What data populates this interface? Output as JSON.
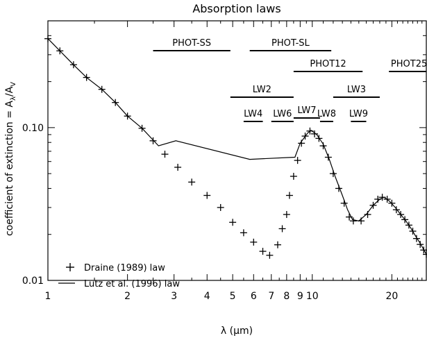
{
  "chart_data": {
    "type": "scatter",
    "title": "Absorption laws",
    "xlabel": "λ (μm)",
    "ylabel": "coefficient of extinction = Aλ/AV",
    "xscale": "log",
    "yscale": "log",
    "xlim": [
      1,
      27
    ],
    "ylim": [
      0.01,
      0.5
    ],
    "x_ticks": [
      {
        "value": 1,
        "label": "1"
      },
      {
        "value": 2,
        "label": "2"
      },
      {
        "value": 3,
        "label": "3"
      },
      {
        "value": 4,
        "label": "4"
      },
      {
        "value": 5,
        "label": "5"
      },
      {
        "value": 6,
        "label": "6"
      },
      {
        "value": 7,
        "label": "7"
      },
      {
        "value": 8,
        "label": "8"
      },
      {
        "value": 9,
        "label": "9"
      },
      {
        "value": 10,
        "label": "10"
      },
      {
        "value": 20,
        "label": "20"
      }
    ],
    "y_ticks": [
      {
        "value": 0.01,
        "label": "0.01"
      },
      {
        "value": 0.1,
        "label": "0.10"
      }
    ],
    "legend_position": "bottom-left",
    "series": [
      {
        "name": "Draine (1989) law",
        "style": "plus-markers",
        "points": [
          [
            1.0,
            0.382
          ],
          [
            1.11,
            0.318
          ],
          [
            1.25,
            0.258
          ],
          [
            1.4,
            0.213
          ],
          [
            1.6,
            0.178
          ],
          [
            1.8,
            0.146
          ],
          [
            2.0,
            0.119
          ],
          [
            2.27,
            0.099
          ],
          [
            2.5,
            0.082
          ],
          [
            2.77,
            0.067
          ],
          [
            3.1,
            0.055
          ],
          [
            3.5,
            0.044
          ],
          [
            4.0,
            0.036
          ],
          [
            4.5,
            0.03
          ],
          [
            5.0,
            0.024
          ],
          [
            5.5,
            0.0205
          ],
          [
            6.0,
            0.0178
          ],
          [
            6.5,
            0.0155
          ],
          [
            6.9,
            0.0146
          ],
          [
            7.4,
            0.0171
          ],
          [
            7.7,
            0.0218
          ],
          [
            8.0,
            0.027
          ],
          [
            8.2,
            0.036
          ],
          [
            8.5,
            0.048
          ],
          [
            8.8,
            0.061
          ],
          [
            9.1,
            0.079
          ],
          [
            9.4,
            0.088
          ],
          [
            9.8,
            0.095
          ],
          [
            10.2,
            0.091
          ],
          [
            10.6,
            0.085
          ],
          [
            11.0,
            0.076
          ],
          [
            11.5,
            0.064
          ],
          [
            12.0,
            0.05
          ],
          [
            12.6,
            0.04
          ],
          [
            13.2,
            0.032
          ],
          [
            13.8,
            0.026
          ],
          [
            14.3,
            0.0245
          ],
          [
            15.3,
            0.0245
          ],
          [
            16.2,
            0.027
          ],
          [
            17.0,
            0.031
          ],
          [
            17.7,
            0.034
          ],
          [
            18.4,
            0.035
          ],
          [
            19.2,
            0.034
          ],
          [
            20.0,
            0.032
          ],
          [
            20.8,
            0.029
          ],
          [
            21.6,
            0.027
          ],
          [
            22.4,
            0.025
          ],
          [
            23.2,
            0.023
          ],
          [
            24.0,
            0.021
          ],
          [
            24.8,
            0.0188
          ],
          [
            25.6,
            0.0172
          ],
          [
            26.4,
            0.0158
          ],
          [
            27.0,
            0.0148
          ]
        ]
      },
      {
        "name": "Lutz et al. (1996) law",
        "style": "line",
        "points": [
          [
            1.0,
            0.382
          ],
          [
            1.11,
            0.318
          ],
          [
            1.25,
            0.258
          ],
          [
            1.4,
            0.213
          ],
          [
            1.6,
            0.178
          ],
          [
            1.8,
            0.146
          ],
          [
            2.0,
            0.119
          ],
          [
            2.27,
            0.099
          ],
          [
            2.62,
            0.076
          ],
          [
            3.05,
            0.082
          ],
          [
            5.8,
            0.062
          ],
          [
            8.6,
            0.064
          ],
          [
            9.0,
            0.079
          ],
          [
            9.6,
            0.092
          ],
          [
            9.9,
            0.096
          ],
          [
            10.4,
            0.09
          ],
          [
            11.0,
            0.078
          ],
          [
            11.6,
            0.062
          ],
          [
            12.2,
            0.048
          ],
          [
            13.0,
            0.036
          ],
          [
            13.6,
            0.029
          ],
          [
            14.2,
            0.025
          ],
          [
            15.0,
            0.0245
          ],
          [
            16.0,
            0.027
          ],
          [
            17.0,
            0.031
          ],
          [
            18.0,
            0.034
          ],
          [
            18.7,
            0.035
          ],
          [
            19.6,
            0.033
          ],
          [
            20.6,
            0.03
          ],
          [
            21.6,
            0.027
          ],
          [
            22.6,
            0.0245
          ],
          [
            23.6,
            0.022
          ],
          [
            24.6,
            0.0195
          ],
          [
            25.6,
            0.0175
          ],
          [
            27.0,
            0.0148
          ]
        ]
      }
    ],
    "bands": [
      {
        "label": "PHOT-SS",
        "range": [
          2.5,
          4.9
        ]
      },
      {
        "label": "PHOT-SL",
        "range": [
          5.8,
          11.8
        ]
      },
      {
        "label": "PHOT12",
        "range": [
          8.5,
          15.5
        ]
      },
      {
        "label": "PHOT25",
        "range": [
          19.5,
          28.5
        ]
      },
      {
        "label": "LW2",
        "range": [
          4.9,
          8.5
        ]
      },
      {
        "label": "LW3",
        "range": [
          12.0,
          18.0
        ]
      },
      {
        "label": "LW4",
        "range": [
          5.5,
          6.5
        ]
      },
      {
        "label": "LW6",
        "range": [
          7.0,
          8.5
        ]
      },
      {
        "label": "LW7",
        "range": [
          8.5,
          10.7
        ]
      },
      {
        "label": "LW8",
        "range": [
          10.7,
          12.0
        ]
      },
      {
        "label": "LW9",
        "range": [
          14.0,
          16.0
        ]
      }
    ]
  }
}
